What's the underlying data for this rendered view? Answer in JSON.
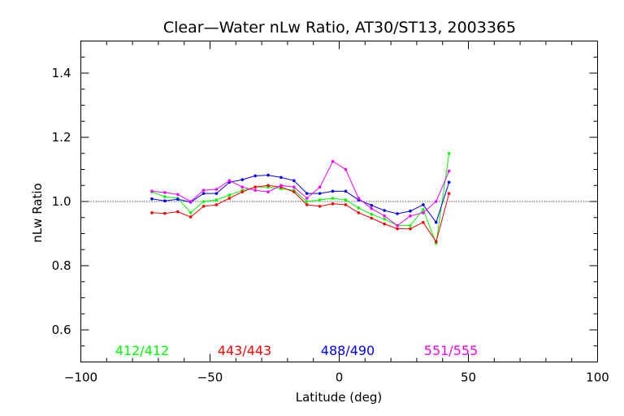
{
  "chart_data": {
    "type": "line",
    "title": "Clear—Water nLw Ratio, AT30/ST13, 2003365",
    "xlabel": "Latitude (deg)",
    "ylabel": "nLw Ratio",
    "xlim": [
      -100,
      100
    ],
    "ylim": [
      0.5,
      1.5
    ],
    "x_ticks": [
      -100,
      -50,
      0,
      50,
      100
    ],
    "x_tick_labels": [
      "−100",
      "−50",
      "0",
      "50",
      "100"
    ],
    "y_ticks": [
      0.6,
      0.8,
      1.0,
      1.2,
      1.4
    ],
    "y_tick_labels": [
      "0.6",
      "0.8",
      "1.0",
      "1.2",
      "1.4"
    ],
    "reference_line": 1.0,
    "grid": false,
    "legend_placement": "bottom",
    "x": [
      -72.5,
      -67.5,
      -62.5,
      -57.5,
      -52.5,
      -47.5,
      -42.5,
      -37.5,
      -32.5,
      -27.5,
      -22.5,
      -17.5,
      -12.5,
      -7.5,
      -2.5,
      2.5,
      7.5,
      12.5,
      17.5,
      22.5,
      27.5,
      32.5,
      37.5,
      42.5
    ],
    "series": [
      {
        "name": "412/412",
        "color": "#00ff00",
        "values": [
          1.03,
          1.015,
          1.01,
          0.965,
          1.0,
          1.005,
          1.02,
          1.035,
          1.045,
          1.045,
          1.04,
          1.035,
          1.0,
          1.005,
          1.01,
          1.005,
          0.98,
          0.96,
          0.945,
          0.925,
          0.925,
          0.975,
          0.87,
          1.15
        ]
      },
      {
        "name": "443/443",
        "color": "#ff0000",
        "values": [
          0.965,
          0.963,
          0.968,
          0.952,
          0.985,
          0.99,
          1.01,
          1.03,
          1.045,
          1.05,
          1.045,
          1.03,
          0.99,
          0.985,
          0.993,
          0.99,
          0.965,
          0.948,
          0.93,
          0.915,
          0.915,
          0.935,
          0.875,
          1.025
        ]
      },
      {
        "name": "488/490",
        "color": "#0000ff",
        "values": [
          1.008,
          1.002,
          1.007,
          0.998,
          1.025,
          1.025,
          1.06,
          1.068,
          1.08,
          1.082,
          1.075,
          1.065,
          1.025,
          1.025,
          1.032,
          1.032,
          1.005,
          0.988,
          0.972,
          0.962,
          0.97,
          0.99,
          0.935,
          1.06
        ]
      },
      {
        "name": "551/555",
        "color": "#ff00ff",
        "values": [
          1.032,
          1.028,
          1.022,
          1.0,
          1.035,
          1.038,
          1.065,
          1.045,
          1.035,
          1.03,
          1.05,
          1.045,
          1.01,
          1.045,
          1.125,
          1.1,
          1.01,
          0.978,
          0.955,
          0.925,
          0.955,
          0.965,
          1.0,
          1.095
        ]
      }
    ]
  }
}
